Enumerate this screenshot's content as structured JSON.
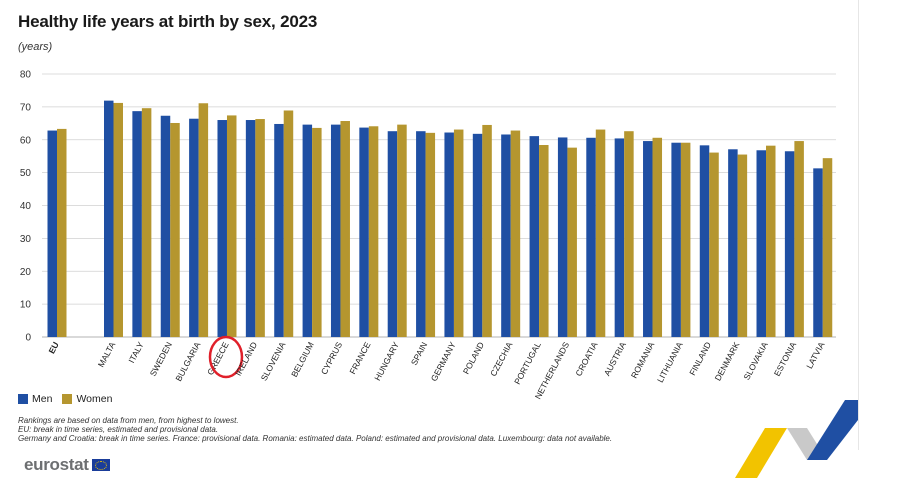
{
  "title": "Healthy life years at birth by sex, 2023",
  "unit": "(years)",
  "legend": {
    "men": "Men",
    "women": "Women"
  },
  "notes": [
    "Rankings are based on data from men, from highest to lowest.",
    "EU: break in time series, estimated and provisional data.",
    "Germany and Croatia: break in time series. France: provisional data. Romania: estimated data. Poland: estimated and provisional data. Luxembourg: data not available."
  ],
  "logo_text": "eurostat",
  "colors": {
    "men": "#1f4fa3",
    "women": "#b5962f",
    "highlight": "#e0202a",
    "grid": "#d0d0d0"
  },
  "highlighted_category": "GREECE",
  "chart_data": {
    "type": "bar",
    "title": "Healthy life years at birth by sex, 2023",
    "ylabel": "(years)",
    "xlabel": "",
    "ylim": [
      0,
      80
    ],
    "yticks": [
      0,
      10,
      20,
      30,
      40,
      50,
      60,
      70,
      80
    ],
    "categories": [
      "EU",
      "MALTA",
      "ITALY",
      "SWEDEN",
      "BULGARIA",
      "GREECE",
      "IRELAND",
      "SLOVENIA",
      "BELGIUM",
      "CYPRUS",
      "FRANCE",
      "HUNGARY",
      "SPAIN",
      "GERMANY",
      "POLAND",
      "CZECHIA",
      "PORTUGAL",
      "NETHERLANDS",
      "CROATIA",
      "AUSTRIA",
      "ROMANIA",
      "LITHUANIA",
      "FINLAND",
      "DENMARK",
      "SLOVAKIA",
      "ESTONIA",
      "LATVIA"
    ],
    "series": [
      {
        "name": "Men",
        "values": [
          62.8,
          71.9,
          68.7,
          67.3,
          66.4,
          66.0,
          66.0,
          64.8,
          64.6,
          64.6,
          63.7,
          62.6,
          62.6,
          62.2,
          61.8,
          61.6,
          61.1,
          60.7,
          60.6,
          60.4,
          59.6,
          59.1,
          58.3,
          57.1,
          56.8,
          56.5,
          51.3
        ]
      },
      {
        "name": "Women",
        "values": [
          63.3,
          71.2,
          69.6,
          65.1,
          71.1,
          67.4,
          66.3,
          68.9,
          63.6,
          65.7,
          64.1,
          64.6,
          62.1,
          63.1,
          64.5,
          62.8,
          58.4,
          57.6,
          63.1,
          62.6,
          60.6,
          59.1,
          56.1,
          55.5,
          58.2,
          59.6,
          54.4
        ]
      }
    ]
  }
}
